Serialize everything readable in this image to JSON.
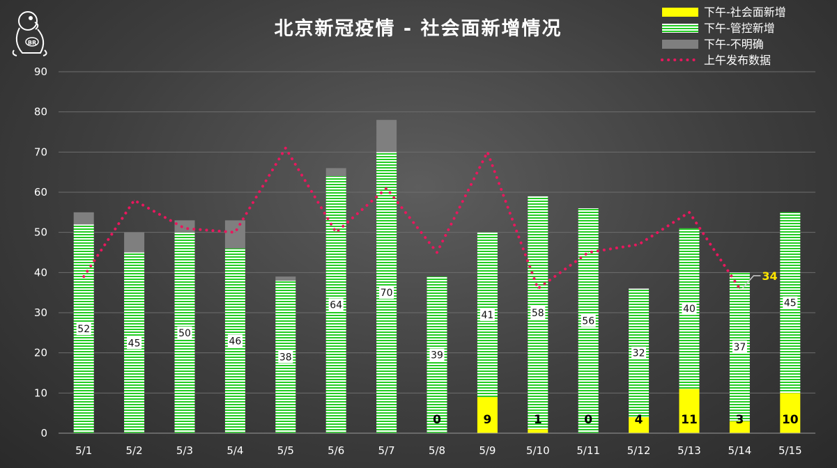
{
  "chart_data": {
    "type": "bar",
    "title": "北京新冠疫情 - 社会面新增情况",
    "categories": [
      "5/1",
      "5/2",
      "5/3",
      "5/4",
      "5/5",
      "5/6",
      "5/7",
      "5/8",
      "5/9",
      "5/10",
      "5/11",
      "5/12",
      "5/13",
      "5/14",
      "5/15"
    ],
    "stacked": true,
    "ylim": [
      0,
      90
    ],
    "yticks": [
      0,
      10,
      20,
      30,
      40,
      50,
      60,
      70,
      80,
      90
    ],
    "grid": true,
    "legend_position": "top-right",
    "series": [
      {
        "name": "下午-社会面新增",
        "kind": "bar",
        "color": "#ffff00",
        "values": [
          0,
          0,
          0,
          0,
          0,
          0,
          0,
          0,
          9,
          1,
          0,
          4,
          11,
          3,
          10
        ]
      },
      {
        "name": "下午-管控新增",
        "kind": "bar",
        "color": "#22cc22",
        "values": [
          52,
          45,
          50,
          46,
          38,
          64,
          70,
          39,
          41,
          58,
          56,
          32,
          40,
          37,
          45
        ]
      },
      {
        "name": "下午-不明确",
        "kind": "bar",
        "color": "#7f7f7f",
        "values": [
          3,
          5,
          3,
          7,
          1,
          2,
          8,
          0,
          0,
          0,
          0,
          0,
          0,
          0,
          0
        ]
      },
      {
        "name": "上午发布数据",
        "kind": "line",
        "color": "#e8175d",
        "values": [
          39,
          58,
          51,
          50,
          71,
          50,
          61,
          45,
          70,
          36,
          45,
          47,
          55,
          36,
          null
        ]
      }
    ],
    "data_labels": {
      "green": [
        "52",
        "45",
        "50",
        "46",
        "38",
        "64",
        "70",
        "39",
        "41",
        "58",
        "56",
        "32",
        "40",
        "37",
        "45"
      ],
      "yellow": [
        "",
        "",
        "",
        "",
        "",
        "",
        "",
        "0",
        "9",
        "1",
        "0",
        "4",
        "11",
        "3",
        "10"
      ]
    },
    "annotations": [
      {
        "text": "34",
        "x": "5/14",
        "y": 34,
        "color": "#ffe600"
      }
    ]
  }
}
